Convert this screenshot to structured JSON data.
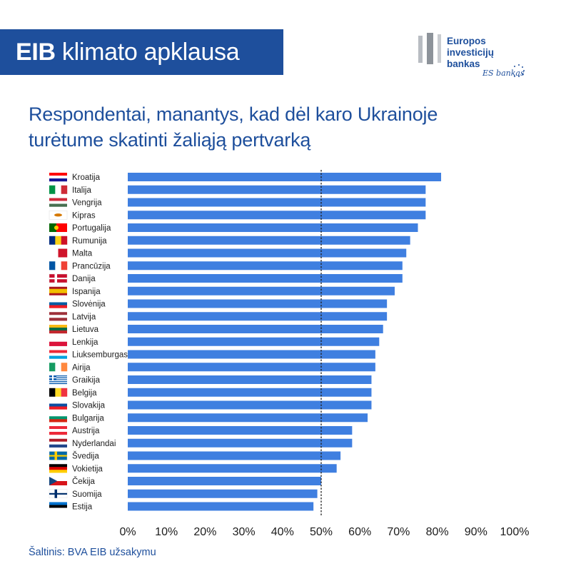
{
  "header": {
    "title_bold": "EIB",
    "title_rest": " klimato apklausa",
    "logo_lines": [
      "Europos",
      "investicijų",
      "bankas"
    ],
    "logo_signature": "ES bankas",
    "accent_color": "#1e4f9c"
  },
  "subtitle_lines": [
    "Respondentai, manantys, kad dėl karo Ukrainoje",
    "turėtume skatinti žaliąją pertvarką"
  ],
  "source": "Šaltinis: BVA EIB užsakymu",
  "chart_data": {
    "type": "bar",
    "orientation": "horizontal",
    "bar_color": "#3f7fe0",
    "reference_line": 50,
    "xlim": [
      0,
      100
    ],
    "x_ticks": [
      "0%",
      "10%",
      "20%",
      "30%",
      "40%",
      "50%",
      "60%",
      "70%",
      "80%",
      "90%",
      "100%"
    ],
    "categories": [
      "Kroatija",
      "Italija",
      "Vengrija",
      "Kipras",
      "Portugalija",
      "Rumunija",
      "Malta",
      "Prancūzija",
      "Danija",
      "Ispanija",
      "Slovėnija",
      "Latvija",
      "Lietuva",
      "Lenkija",
      "Liuksemburgas",
      "Airija",
      "Graikija",
      "Belgija",
      "Slovakija",
      "Bulgarija",
      "Austrija",
      "Nyderlandai",
      "Švedija",
      "Vokietija",
      "Čekija",
      "Suomija",
      "Estija"
    ],
    "values": [
      81,
      77,
      77,
      77,
      75,
      73,
      72,
      71,
      71,
      69,
      67,
      67,
      66,
      65,
      64,
      64,
      63,
      63,
      63,
      62,
      58,
      58,
      55,
      54,
      50,
      49,
      48
    ],
    "flag_icons": [
      "flag-croatia",
      "flag-italy",
      "flag-hungary",
      "flag-cyprus",
      "flag-portugal",
      "flag-romania",
      "flag-malta",
      "flag-france",
      "flag-denmark",
      "flag-spain",
      "flag-slovenia",
      "flag-latvia",
      "flag-lithuania",
      "flag-poland",
      "flag-luxembourg",
      "flag-ireland",
      "flag-greece",
      "flag-belgium",
      "flag-slovakia",
      "flag-bulgaria",
      "flag-austria",
      "flag-netherlands",
      "flag-sweden",
      "flag-germany",
      "flag-czechia",
      "flag-finland",
      "flag-estonia"
    ],
    "title": "",
    "xlabel": "",
    "ylabel": ""
  }
}
